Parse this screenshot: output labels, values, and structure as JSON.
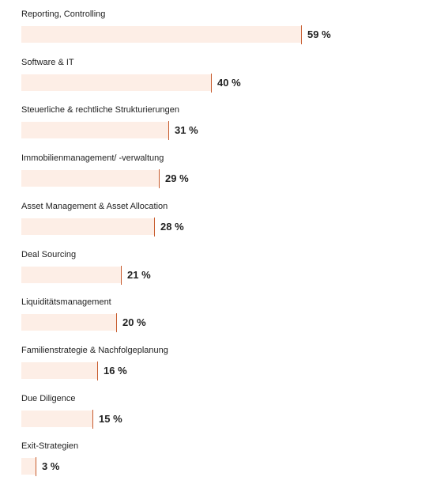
{
  "colors": {
    "bar_fill": "#fdeee6",
    "marker": "#c75a2c",
    "text": "#222222"
  },
  "chart_data": {
    "type": "bar",
    "orientation": "horizontal",
    "title": "",
    "xlabel": "",
    "ylabel": "",
    "xlim": [
      0,
      100
    ],
    "grid": false,
    "legend": "none",
    "categories": [
      "Reporting, Controlling",
      "Software & IT",
      "Steuerliche & rechtliche Strukturierungen",
      "Immobilienmanagement/ -verwaltung",
      "Asset Management & Asset Allocation",
      "Deal Sourcing",
      "Liquiditätsmanagement",
      "Familienstrategie & Nachfolgeplanung",
      "Due Diligence",
      "Exit-Strategien"
    ],
    "values": [
      59,
      40,
      31,
      29,
      28,
      21,
      20,
      16,
      15,
      3
    ],
    "value_labels": [
      "59 %",
      "40 %",
      "31 %",
      "29 %",
      "28 %",
      "21 %",
      "20 %",
      "16 %",
      "15 %",
      "3 %"
    ]
  }
}
